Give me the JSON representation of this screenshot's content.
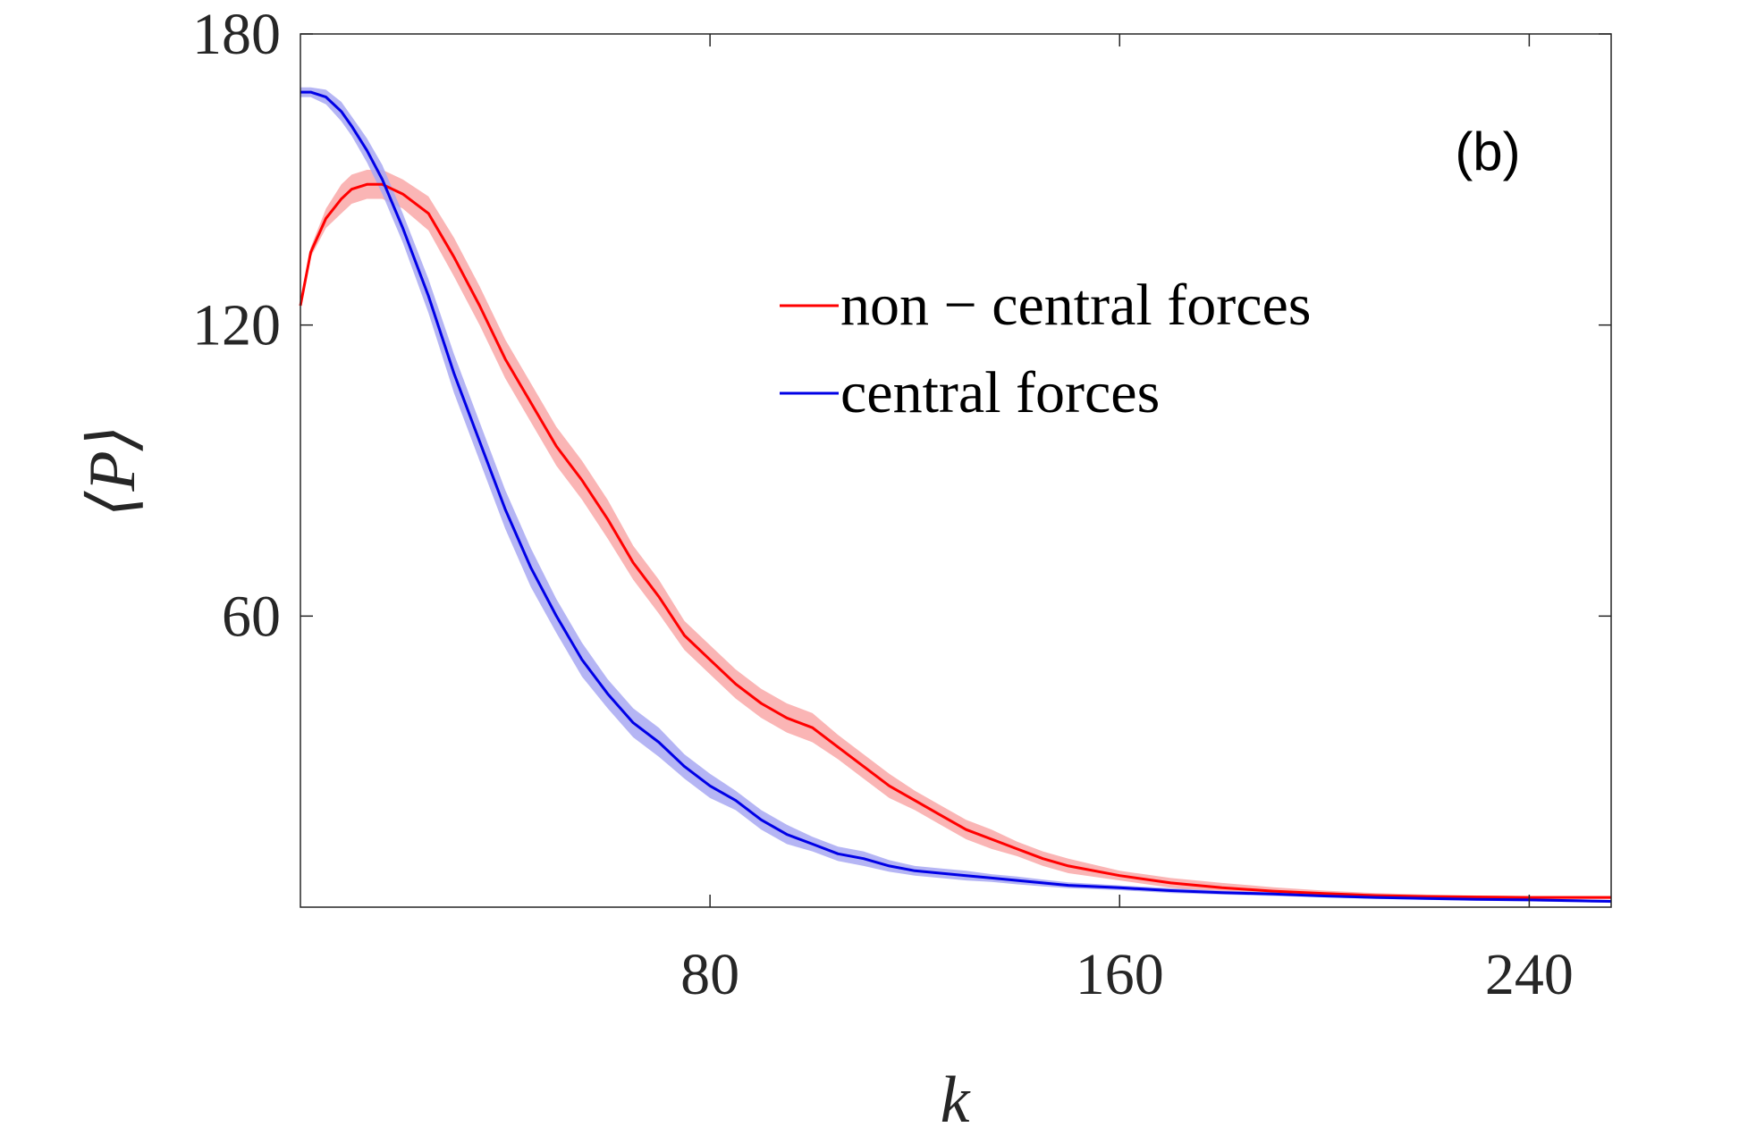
{
  "chart_data": {
    "type": "line",
    "panel_label": "(b)",
    "xlabel": "k",
    "ylabel": "⟨P⟩",
    "xlim": [
      0,
      256
    ],
    "ylim": [
      0,
      180
    ],
    "xticks": [
      80,
      160,
      240
    ],
    "yticks": [
      60,
      120,
      180
    ],
    "grid": false,
    "legend_position": "upper-right",
    "shaded_band": true,
    "series": [
      {
        "name": "non − central forces",
        "color": "#ff0000",
        "band_color": "#f9a8a8",
        "x": [
          0,
          2,
          5,
          8,
          10,
          13,
          16,
          20,
          25,
          30,
          35,
          40,
          45,
          50,
          55,
          60,
          65,
          70,
          75,
          80,
          85,
          90,
          95,
          100,
          105,
          110,
          115,
          120,
          125,
          130,
          135,
          140,
          145,
          150,
          160,
          170,
          180,
          190,
          200,
          210,
          220,
          230,
          240,
          250,
          256
        ],
        "y": [
          124,
          135,
          142,
          146,
          148,
          149,
          149,
          147,
          143,
          134,
          124,
          113,
          104,
          95,
          88,
          80,
          71,
          64,
          56,
          51,
          46,
          42,
          39,
          37,
          33,
          29,
          25,
          22,
          19,
          16,
          14,
          12,
          10,
          8.5,
          6.5,
          5,
          4,
          3.3,
          2.8,
          2.4,
          2.2,
          2.1,
          2.0,
          2.0,
          2.0
        ],
        "band": [
          0,
          1,
          2,
          3,
          3,
          3,
          3,
          3,
          3.5,
          4,
          4,
          4,
          4,
          4,
          4,
          4,
          3.5,
          3.5,
          3,
          3,
          3,
          3,
          3,
          3,
          2.5,
          2.5,
          2.5,
          2,
          2,
          2,
          2,
          1.5,
          1.5,
          1.5,
          1,
          1,
          1,
          0.8,
          0.6,
          0.5,
          0.4,
          0.3,
          0.3,
          0.3,
          0.3
        ]
      },
      {
        "name": "central forces",
        "color": "#0000e6",
        "band_color": "#a8a8f2",
        "x": [
          0,
          2,
          5,
          8,
          10,
          13,
          16,
          20,
          25,
          30,
          35,
          40,
          45,
          50,
          55,
          60,
          65,
          70,
          75,
          80,
          85,
          90,
          95,
          100,
          105,
          110,
          115,
          120,
          125,
          130,
          135,
          140,
          145,
          150,
          160,
          170,
          180,
          190,
          200,
          210,
          220,
          230,
          240,
          250,
          256
        ],
        "y": [
          168,
          168,
          167,
          164,
          161,
          156,
          150,
          140,
          126,
          110,
          96,
          82,
          70,
          60,
          51,
          44,
          38,
          34,
          29,
          25,
          22,
          18,
          15,
          13,
          11,
          10,
          8.5,
          7.5,
          7,
          6.5,
          6,
          5.5,
          5,
          4.5,
          4,
          3.4,
          3,
          2.7,
          2.3,
          2.0,
          1.8,
          1.6,
          1.5,
          1.3,
          1.2
        ],
        "band": [
          1,
          1,
          1.5,
          2,
          2,
          2.5,
          3,
          3,
          3.5,
          4,
          4,
          4,
          4,
          3.5,
          3.5,
          3,
          3,
          3,
          2.5,
          2.5,
          2,
          2,
          2,
          1.5,
          1.5,
          1.5,
          1.2,
          1,
          1,
          1,
          0.8,
          0.8,
          0.7,
          0.6,
          0.5,
          0.5,
          0.4,
          0.4,
          0.3,
          0.3,
          0.3,
          0.3,
          0.3,
          0.3,
          0.3
        ]
      }
    ]
  }
}
